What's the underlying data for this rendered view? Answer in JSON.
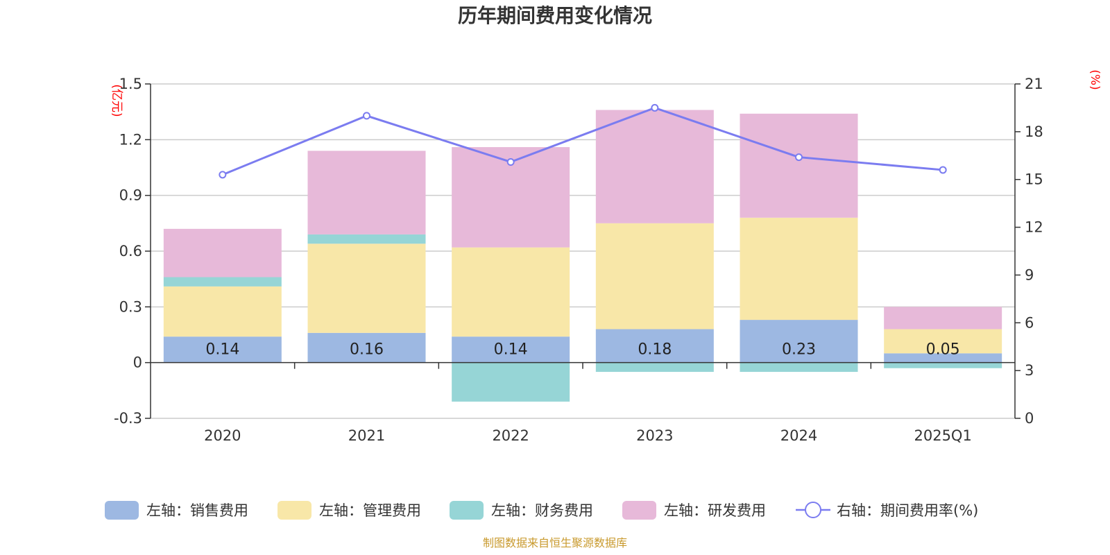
{
  "colors": {
    "sales": "#9db8e2",
    "admin": "#f8e7a8",
    "finance": "#96d5d6",
    "rnd": "#e7b9d9",
    "rate": "#7b7cf0",
    "unit": "#ff0000",
    "source": "#c99a2e"
  },
  "chart_data": {
    "type": "bar",
    "stacked": true,
    "title": "历年期间费用变化情况",
    "categories": [
      "2020",
      "2021",
      "2022",
      "2023",
      "2024",
      "2025Q1"
    ],
    "left_axis": {
      "unit": "(亿元)",
      "min": -0.3,
      "max": 1.5,
      "ticks": [
        "1.5",
        "1.2",
        "0.9",
        "0.6",
        "0.3",
        "0",
        "-0.3"
      ],
      "tick_values": [
        1.5,
        1.2,
        0.9,
        0.6,
        0.3,
        0,
        -0.3
      ]
    },
    "right_axis": {
      "unit": "(%)",
      "min": 0,
      "max": 21,
      "ticks": [
        "21",
        "18",
        "15",
        "12",
        "9",
        "6",
        "3",
        "0"
      ],
      "tick_values": [
        21,
        18,
        15,
        12,
        9,
        6,
        3,
        0
      ]
    },
    "series": [
      {
        "name": "左轴：销售费用",
        "key": "sales",
        "values": [
          0.14,
          0.16,
          0.14,
          0.18,
          0.23,
          0.05
        ],
        "labels": [
          "0.14",
          "0.16",
          "0.14",
          "0.18",
          "0.23",
          "0.05"
        ]
      },
      {
        "name": "左轴：管理费用",
        "key": "admin",
        "values": [
          0.27,
          0.48,
          0.48,
          0.57,
          0.55,
          0.13
        ]
      },
      {
        "name": "左轴：财务费用",
        "key": "finance",
        "values": [
          0.05,
          0.05,
          -0.21,
          -0.05,
          -0.05,
          -0.03
        ]
      },
      {
        "name": "左轴：研发费用",
        "key": "rnd",
        "values": [
          0.26,
          0.45,
          0.54,
          0.61,
          0.56,
          0.12
        ]
      }
    ],
    "line_series": {
      "name": "右轴：期间费用率(%)",
      "key": "rate",
      "values": [
        15.3,
        19.0,
        16.1,
        19.5,
        16.4,
        15.6
      ]
    },
    "legend_position": "bottom"
  },
  "source_text": "制图数据来自恒生聚源数据库"
}
